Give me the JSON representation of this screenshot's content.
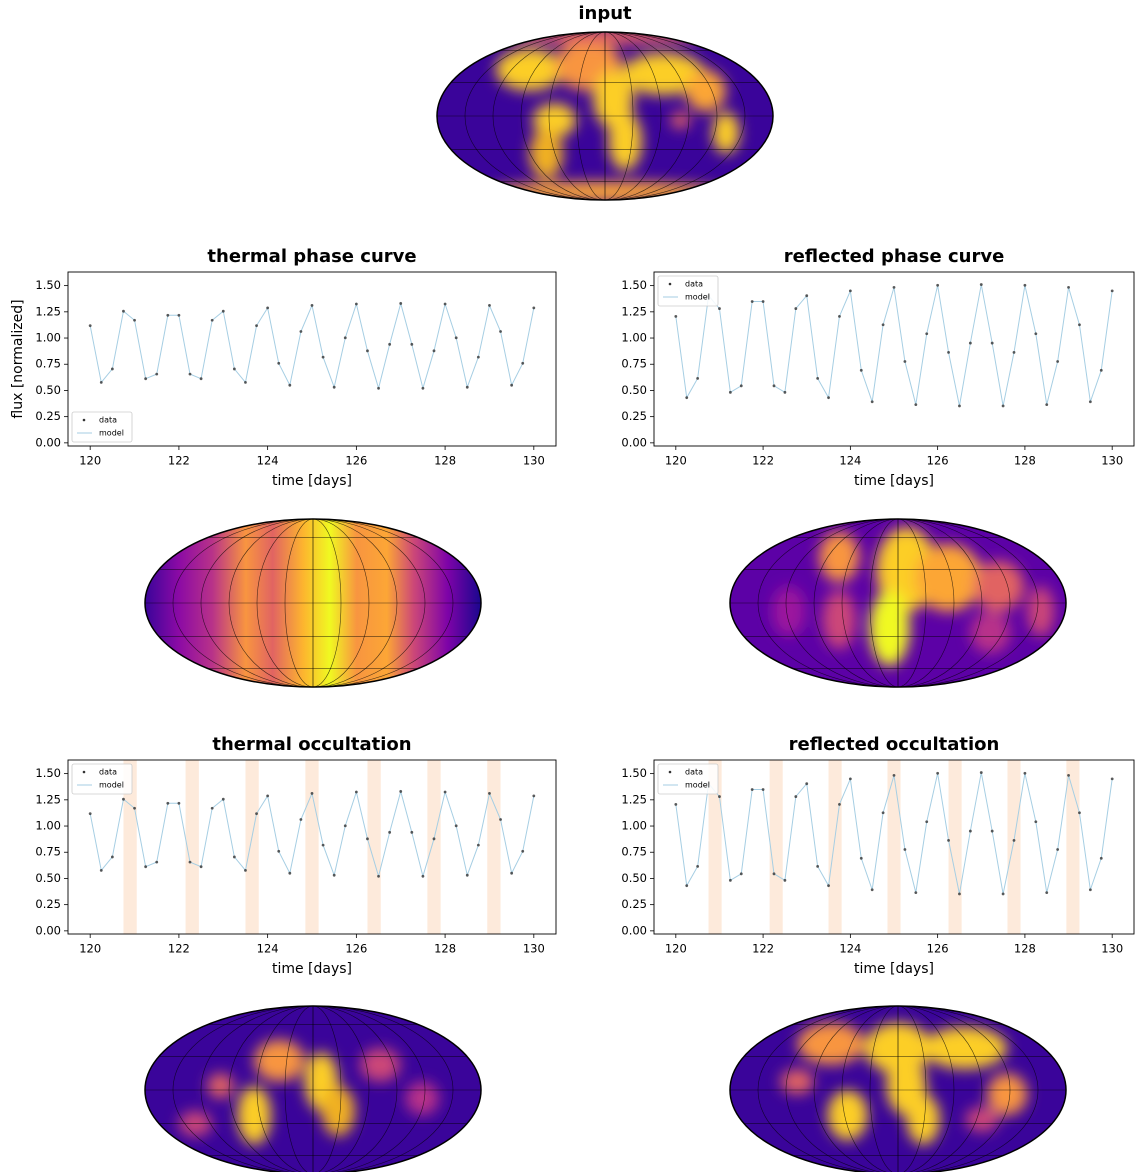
{
  "chart_data": [
    {
      "type": "map",
      "title": "input"
    },
    {
      "type": "line",
      "title": "thermal phase curve",
      "xlabel": "time [days]",
      "ylabel": "flux [normalized]",
      "legend": "lower left",
      "xlim": [
        119.5,
        130.5
      ],
      "ylim": [
        -0.03,
        1.63
      ],
      "xticks": [
        120,
        122,
        124,
        126,
        128,
        130
      ],
      "yticks": [
        {
          "value": 0,
          "label": "0.00"
        },
        {
          "value": 0.25,
          "label": "0.25"
        },
        {
          "value": 0.5,
          "label": "0.50"
        },
        {
          "value": 0.75,
          "label": "0.75"
        },
        {
          "value": 1,
          "label": "1.00"
        },
        {
          "value": 1.25,
          "label": "1.25"
        },
        {
          "value": 1.5,
          "label": "1.50"
        }
      ],
      "x": [
        120,
        120.25,
        120.5,
        120.75,
        121,
        121.25,
        121.5,
        121.75,
        122,
        122.25,
        122.5,
        122.75,
        123,
        123.25,
        123.5,
        123.75,
        124,
        124.25,
        124.5,
        124.75,
        125,
        125.25,
        125.5,
        125.75,
        126,
        126.25,
        126.5,
        126.75,
        127,
        127.25,
        127.5,
        127.75,
        128,
        128.25,
        128.5,
        128.75,
        129,
        129.25,
        129.5,
        129.75,
        130
      ],
      "series": [
        {
          "name": "data",
          "color": "#333333",
          "values": [
            1.118,
            0.577,
            0.705,
            1.256,
            1.17,
            0.612,
            0.656,
            1.217,
            1.217,
            0.656,
            0.612,
            1.17,
            1.256,
            0.705,
            0.577,
            1.118,
            1.288,
            0.759,
            0.55,
            1.062,
            1.311,
            0.818,
            0.531,
            1.002,
            1.325,
            0.878,
            0.521,
            0.94,
            1.33,
            0.94,
            0.521,
            0.878,
            1.325,
            1.002,
            0.531,
            0.818,
            1.311,
            1.062,
            0.55,
            0.759,
            1.288
          ]
        },
        {
          "name": "model",
          "color": "#a6cee3",
          "values": [
            1.118,
            0.577,
            0.705,
            1.256,
            1.17,
            0.612,
            0.656,
            1.217,
            1.217,
            0.656,
            0.612,
            1.17,
            1.256,
            0.705,
            0.577,
            1.118,
            1.288,
            0.759,
            0.55,
            1.062,
            1.311,
            0.818,
            0.531,
            1.002,
            1.325,
            0.878,
            0.521,
            0.94,
            1.33,
            0.94,
            0.521,
            0.878,
            1.325,
            1.002,
            0.531,
            0.818,
            1.311,
            1.062,
            0.55,
            0.759,
            1.288
          ]
        }
      ]
    },
    {
      "type": "line",
      "title": "reflected phase curve",
      "xlabel": "time [days]",
      "legend": "upper left",
      "xlim": [
        119.5,
        130.5
      ],
      "ylim": [
        -0.03,
        1.63
      ],
      "xticks": [
        120,
        122,
        124,
        126,
        128,
        130
      ],
      "yticks": [
        {
          "value": 0,
          "label": "0.00"
        },
        {
          "value": 0.25,
          "label": "0.25"
        },
        {
          "value": 0.5,
          "label": "0.50"
        },
        {
          "value": 0.75,
          "label": "0.75"
        },
        {
          "value": 1,
          "label": "1.00"
        },
        {
          "value": 1.25,
          "label": "1.25"
        },
        {
          "value": 1.5,
          "label": "1.50"
        }
      ],
      "x": [
        120,
        120.25,
        120.5,
        120.75,
        121,
        121.25,
        121.5,
        121.75,
        122,
        122.25,
        122.5,
        122.75,
        123,
        123.25,
        123.5,
        123.75,
        124,
        124.25,
        124.5,
        124.75,
        125,
        125.25,
        125.5,
        125.75,
        126,
        126.25,
        126.5,
        126.75,
        127,
        127.25,
        127.5,
        127.75,
        128,
        128.25,
        128.5,
        128.75,
        129,
        129.25,
        129.5,
        129.75,
        130
      ],
      "series": [
        {
          "name": "data",
          "color": "#333333",
          "values": [
            1.207,
            0.431,
            0.615,
            1.404,
            1.281,
            0.482,
            0.544,
            1.348,
            1.348,
            0.544,
            0.482,
            1.281,
            1.404,
            0.615,
            0.431,
            1.207,
            1.45,
            0.692,
            0.392,
            1.127,
            1.483,
            0.776,
            0.365,
            1.041,
            1.503,
            0.863,
            0.352,
            0.952,
            1.51,
            0.952,
            0.352,
            0.863,
            1.503,
            1.041,
            0.365,
            0.776,
            1.483,
            1.127,
            0.392,
            0.692,
            1.45
          ]
        },
        {
          "name": "model",
          "color": "#a6cee3",
          "values": [
            1.207,
            0.431,
            0.615,
            1.404,
            1.281,
            0.482,
            0.544,
            1.348,
            1.348,
            0.544,
            0.482,
            1.281,
            1.404,
            0.615,
            0.431,
            1.207,
            1.45,
            0.692,
            0.392,
            1.127,
            1.483,
            0.776,
            0.365,
            1.041,
            1.503,
            0.863,
            0.352,
            0.952,
            1.51,
            0.952,
            0.352,
            0.863,
            1.503,
            1.041,
            0.365,
            0.776,
            1.483,
            1.127,
            0.392,
            0.692,
            1.45
          ]
        }
      ]
    },
    {
      "type": "map"
    },
    {
      "type": "map"
    },
    {
      "type": "line",
      "title": "thermal occultation",
      "xlabel": "time [days]",
      "legend": "upper left",
      "xlim": [
        119.5,
        130.5
      ],
      "ylim": [
        -0.03,
        1.63
      ],
      "xticks": [
        120,
        122,
        124,
        126,
        128,
        130
      ],
      "yticks": [
        {
          "value": 0,
          "label": "0.00"
        },
        {
          "value": 0.25,
          "label": "0.25"
        },
        {
          "value": 0.5,
          "label": "0.50"
        },
        {
          "value": 0.75,
          "label": "0.75"
        },
        {
          "value": 1,
          "label": "1.00"
        },
        {
          "value": 1.25,
          "label": "1.25"
        },
        {
          "value": 1.5,
          "label": "1.50"
        }
      ],
      "spans": [
        [
          120.75,
          121.05
        ],
        [
          122.15,
          122.45
        ],
        [
          123.5,
          123.8
        ],
        [
          124.85,
          125.15
        ],
        [
          126.25,
          126.55
        ],
        [
          127.6,
          127.9
        ],
        [
          128.95,
          129.25
        ]
      ],
      "span_color": "#fdeadb",
      "x": [
        120,
        120.25,
        120.5,
        120.75,
        121,
        121.25,
        121.5,
        121.75,
        122,
        122.25,
        122.5,
        122.75,
        123,
        123.25,
        123.5,
        123.75,
        124,
        124.25,
        124.5,
        124.75,
        125,
        125.25,
        125.5,
        125.75,
        126,
        126.25,
        126.5,
        126.75,
        127,
        127.25,
        127.5,
        127.75,
        128,
        128.25,
        128.5,
        128.75,
        129,
        129.25,
        129.5,
        129.75,
        130
      ],
      "series": [
        {
          "name": "data",
          "color": "#333333",
          "values": [
            1.118,
            0.577,
            0.705,
            1.256,
            1.17,
            0.612,
            0.656,
            1.217,
            1.217,
            0.656,
            0.612,
            1.17,
            1.256,
            0.705,
            0.577,
            1.118,
            1.288,
            0.759,
            0.55,
            1.062,
            1.311,
            0.818,
            0.531,
            1.002,
            1.325,
            0.878,
            0.521,
            0.94,
            1.33,
            0.94,
            0.521,
            0.878,
            1.325,
            1.002,
            0.531,
            0.818,
            1.311,
            1.062,
            0.55,
            0.759,
            1.288
          ]
        },
        {
          "name": "model",
          "color": "#a6cee3",
          "values": [
            1.118,
            0.577,
            0.705,
            1.256,
            1.17,
            0.612,
            0.656,
            1.217,
            1.217,
            0.656,
            0.612,
            1.17,
            1.256,
            0.705,
            0.577,
            1.118,
            1.288,
            0.759,
            0.55,
            1.062,
            1.311,
            0.818,
            0.531,
            1.002,
            1.325,
            0.878,
            0.521,
            0.94,
            1.33,
            0.94,
            0.521,
            0.878,
            1.325,
            1.002,
            0.531,
            0.818,
            1.311,
            1.062,
            0.55,
            0.759,
            1.288
          ]
        }
      ]
    },
    {
      "type": "line",
      "title": "reflected occultation",
      "xlabel": "time [days]",
      "legend": "upper left",
      "xlim": [
        119.5,
        130.5
      ],
      "ylim": [
        -0.03,
        1.63
      ],
      "xticks": [
        120,
        122,
        124,
        126,
        128,
        130
      ],
      "yticks": [
        {
          "value": 0,
          "label": "0.00"
        },
        {
          "value": 0.25,
          "label": "0.25"
        },
        {
          "value": 0.5,
          "label": "0.50"
        },
        {
          "value": 0.75,
          "label": "0.75"
        },
        {
          "value": 1,
          "label": "1.00"
        },
        {
          "value": 1.25,
          "label": "1.25"
        },
        {
          "value": 1.5,
          "label": "1.50"
        }
      ],
      "spans": [
        [
          120.75,
          121.05
        ],
        [
          122.15,
          122.45
        ],
        [
          123.5,
          123.8
        ],
        [
          124.85,
          125.15
        ],
        [
          126.25,
          126.55
        ],
        [
          127.6,
          127.9
        ],
        [
          128.95,
          129.25
        ]
      ],
      "span_color": "#fdeadb",
      "x": [
        120,
        120.25,
        120.5,
        120.75,
        121,
        121.25,
        121.5,
        121.75,
        122,
        122.25,
        122.5,
        122.75,
        123,
        123.25,
        123.5,
        123.75,
        124,
        124.25,
        124.5,
        124.75,
        125,
        125.25,
        125.5,
        125.75,
        126,
        126.25,
        126.5,
        126.75,
        127,
        127.25,
        127.5,
        127.75,
        128,
        128.25,
        128.5,
        128.75,
        129,
        129.25,
        129.5,
        129.75,
        130
      ],
      "series": [
        {
          "name": "data",
          "color": "#333333",
          "values": [
            1.207,
            0.431,
            0.615,
            1.404,
            1.281,
            0.482,
            0.544,
            1.348,
            1.348,
            0.544,
            0.482,
            1.281,
            1.404,
            0.615,
            0.431,
            1.207,
            1.45,
            0.692,
            0.392,
            1.127,
            1.483,
            0.776,
            0.365,
            1.041,
            1.503,
            0.863,
            0.352,
            0.952,
            1.51,
            0.952,
            0.352,
            0.863,
            1.503,
            1.041,
            0.365,
            0.776,
            1.483,
            1.127,
            0.392,
            0.692,
            1.45
          ]
        },
        {
          "name": "model",
          "color": "#a6cee3",
          "values": [
            1.207,
            0.431,
            0.615,
            1.404,
            1.281,
            0.482,
            0.544,
            1.348,
            1.348,
            0.544,
            0.482,
            1.281,
            1.404,
            0.615,
            0.431,
            1.207,
            1.45,
            0.692,
            0.392,
            1.127,
            1.483,
            0.776,
            0.365,
            1.041,
            1.503,
            0.863,
            0.352,
            0.952,
            1.51,
            0.952,
            0.352,
            0.863,
            1.503,
            1.041,
            0.365,
            0.776,
            1.483,
            1.127,
            0.392,
            0.692,
            1.45
          ]
        }
      ]
    },
    {
      "type": "map"
    },
    {
      "type": "map"
    }
  ]
}
